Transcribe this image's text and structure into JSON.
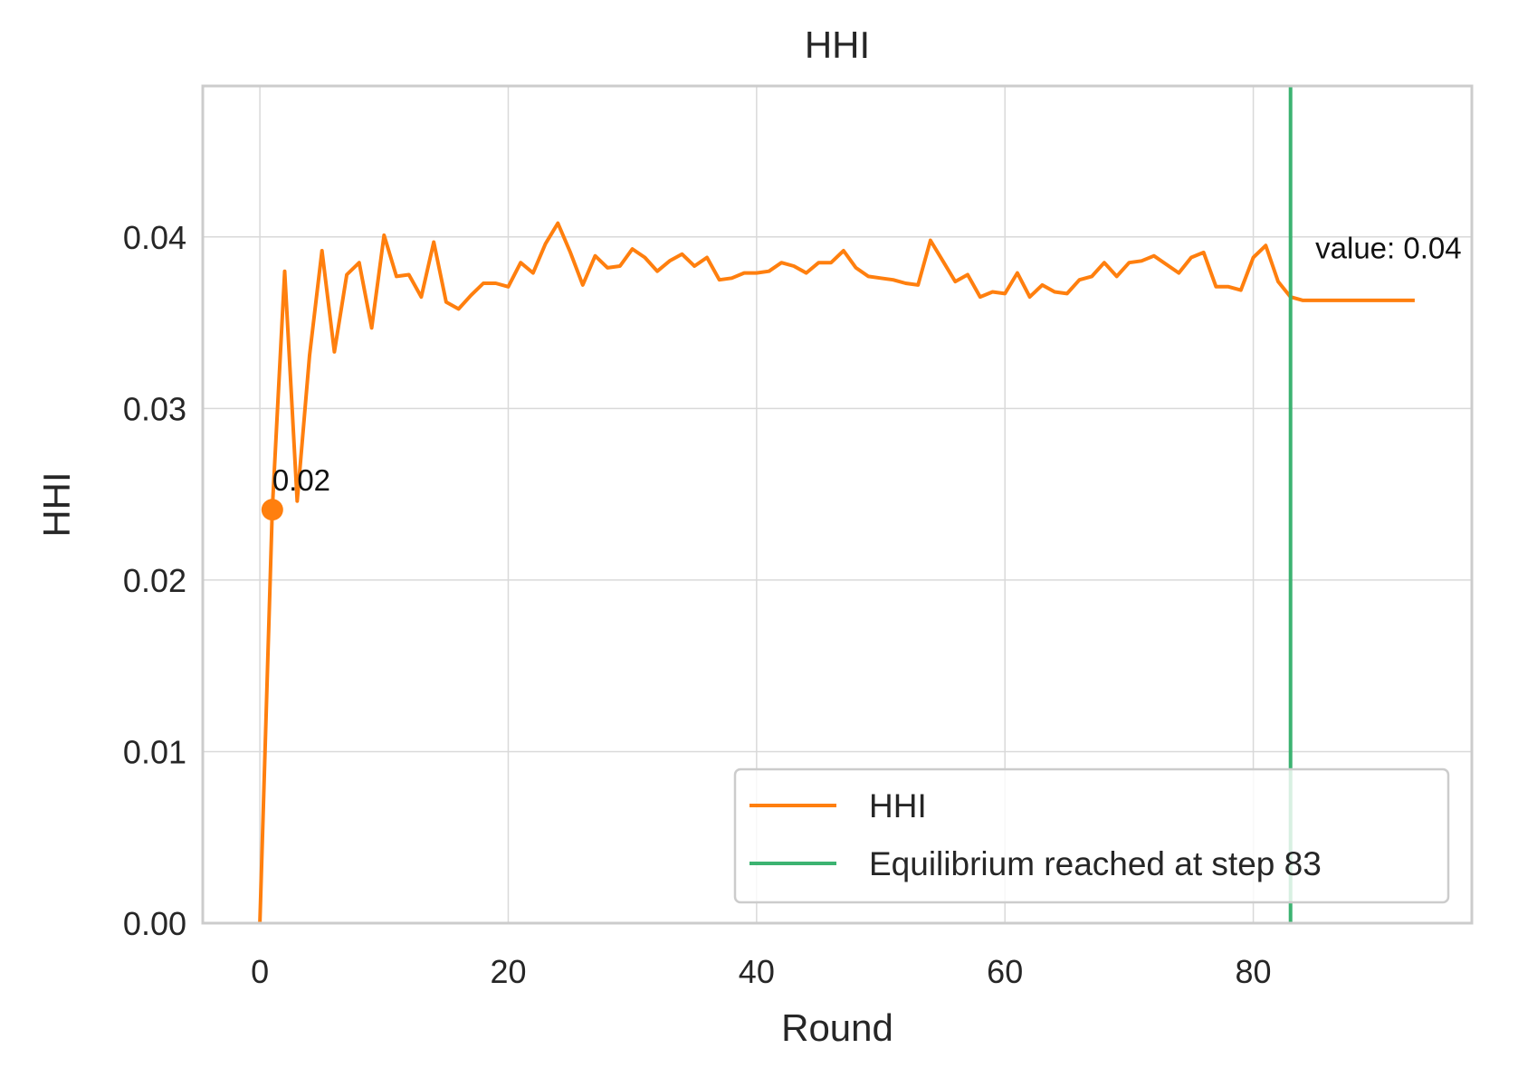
{
  "chart_data": {
    "type": "line",
    "title": "HHI",
    "xlabel": "Round",
    "ylabel": "HHI",
    "xlim": [
      -4.6,
      97.6
    ],
    "ylim": [
      0,
      0.0488
    ],
    "xticks": [
      0,
      20,
      40,
      60,
      80
    ],
    "xtick_labels": [
      "0",
      "20",
      "40",
      "60",
      "80"
    ],
    "yticks": [
      0.0,
      0.01,
      0.02,
      0.03,
      0.04
    ],
    "ytick_labels": [
      "0.00",
      "0.01",
      "0.02",
      "0.03",
      "0.04"
    ],
    "grid": true,
    "legend_position": "lower right",
    "series": [
      {
        "name": "HHI",
        "color": "#ff7f0e",
        "x": [
          0,
          1,
          2,
          3,
          4,
          5,
          6,
          7,
          8,
          9,
          10,
          11,
          12,
          13,
          14,
          15,
          16,
          17,
          18,
          19,
          20,
          21,
          22,
          23,
          24,
          25,
          26,
          27,
          28,
          29,
          30,
          31,
          32,
          33,
          34,
          35,
          36,
          37,
          38,
          39,
          40,
          41,
          42,
          43,
          44,
          45,
          46,
          47,
          48,
          49,
          50,
          51,
          52,
          53,
          54,
          55,
          56,
          57,
          58,
          59,
          60,
          61,
          62,
          63,
          64,
          65,
          66,
          67,
          68,
          69,
          70,
          71,
          72,
          73,
          74,
          75,
          76,
          77,
          78,
          79,
          80,
          81,
          82,
          83,
          84,
          85,
          86,
          87,
          88,
          89,
          90,
          91,
          92,
          93
        ],
        "y": [
          0.0,
          0.0241,
          0.038,
          0.0246,
          0.0331,
          0.0392,
          0.0333,
          0.0378,
          0.0385,
          0.0347,
          0.0401,
          0.0377,
          0.0378,
          0.0365,
          0.0397,
          0.0362,
          0.0358,
          0.0366,
          0.0373,
          0.0373,
          0.0371,
          0.0385,
          0.0379,
          0.0396,
          0.0408,
          0.0391,
          0.0372,
          0.0389,
          0.0382,
          0.0383,
          0.0393,
          0.0388,
          0.038,
          0.0386,
          0.039,
          0.0383,
          0.0388,
          0.0375,
          0.0376,
          0.0379,
          0.0379,
          0.038,
          0.0385,
          0.0383,
          0.0379,
          0.0385,
          0.0385,
          0.0392,
          0.0382,
          0.0377,
          0.0376,
          0.0375,
          0.0373,
          0.0372,
          0.0398,
          0.0386,
          0.0374,
          0.0378,
          0.0365,
          0.0368,
          0.0367,
          0.0379,
          0.0365,
          0.0372,
          0.0368,
          0.0367,
          0.0375,
          0.0377,
          0.0385,
          0.0377,
          0.0385,
          0.0386,
          0.0389,
          0.0384,
          0.0379,
          0.0388,
          0.0391,
          0.0371,
          0.0371,
          0.0369,
          0.0388,
          0.0395,
          0.0374,
          0.0365,
          0.0363,
          0.0363,
          0.0363,
          0.0363,
          0.0363,
          0.0363,
          0.0363,
          0.0363,
          0.0363,
          0.0363
        ]
      },
      {
        "name": "Equilibrium reached at step 83",
        "color": "#3cb371",
        "type": "vline",
        "x": 83
      }
    ],
    "annotations": [
      {
        "text": "0.02",
        "x": 1,
        "y": 0.0241,
        "marker": true
      },
      {
        "text": "value: 0.04",
        "x": 85,
        "y": 0.0378
      }
    ]
  }
}
